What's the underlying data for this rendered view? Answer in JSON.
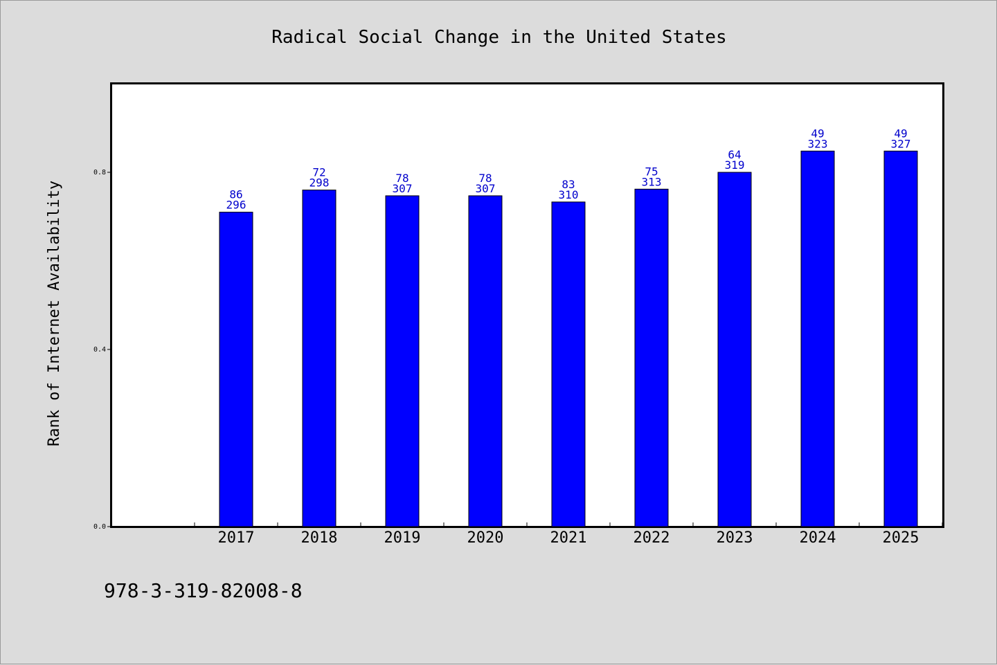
{
  "chart_data": {
    "type": "bar",
    "title": "Radical Social Change in the United States",
    "xlabel": "",
    "ylabel": "Rank of Internet Availability",
    "categories": [
      "2017",
      "2018",
      "2019",
      "2020",
      "2021",
      "2022",
      "2023",
      "2024",
      "2025"
    ],
    "values": [
      0.71,
      0.76,
      0.747,
      0.747,
      0.733,
      0.762,
      0.8,
      0.848,
      0.848
    ],
    "data_labels_top": [
      "86",
      "72",
      "78",
      "78",
      "83",
      "75",
      "64",
      "49",
      "49"
    ],
    "data_labels_bottom": [
      "296",
      "298",
      "307",
      "307",
      "310",
      "313",
      "319",
      "323",
      "327"
    ],
    "ylim": [
      0,
      1.0
    ],
    "yticks": [
      0.0,
      0.4,
      0.8
    ],
    "ytick_labels": [
      "0.0",
      "0.4",
      "0.8"
    ],
    "grid": false,
    "bar_color": "#0000ff",
    "label_color": "#0000cc"
  },
  "footer_text": "978-3-319-82008-8"
}
